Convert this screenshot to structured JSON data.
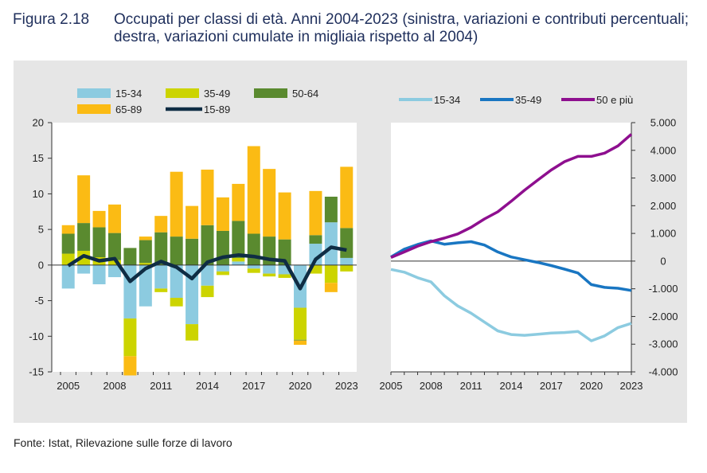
{
  "figure": {
    "number": "Figura 2.18",
    "title": "Occupati per classi di età. Anni 2004-2023 (sinistra, variazioni e contributi percentuali; destra, variazioni cumulate in migliaia rispetto al 2004)",
    "source": "Fonte: Istat, Rilevazione sulle forze di lavoro"
  },
  "chart_data": [
    {
      "type": "bar",
      "subtype": "stacked bar with line",
      "years": [
        2005,
        2006,
        2007,
        2008,
        2009,
        2010,
        2011,
        2012,
        2013,
        2014,
        2015,
        2016,
        2017,
        2018,
        2019,
        2020,
        2021,
        2022,
        2023
      ],
      "x_tick_labels": [
        "2005",
        "2008",
        "2011",
        "2014",
        "2017",
        "2020",
        "2023"
      ],
      "ylim": [
        -15,
        20
      ],
      "y_tick_labels": [
        "20",
        "15",
        "10",
        "5",
        "0",
        "-5",
        "-10",
        "-15"
      ],
      "legend_position": "top",
      "series": [
        {
          "name": "15-34",
          "kind": "bar",
          "color": "#8ccbe0",
          "values": [
            -3.3,
            -1.2,
            -2.7,
            -1.7,
            -7.5,
            -5.8,
            -3.3,
            -4.6,
            -8.3,
            -2.9,
            -0.9,
            0.5,
            -0.5,
            -1.2,
            -1.3,
            -6.0,
            3.0,
            6.0,
            1.0
          ]
        },
        {
          "name": "35-49",
          "kind": "bar",
          "color": "#ccd400",
          "values": [
            1.6,
            2.0,
            1.1,
            0.7,
            -5.3,
            0.3,
            -0.5,
            -1.2,
            -2.3,
            -1.6,
            -0.5,
            0.5,
            -0.6,
            -0.4,
            -0.5,
            -4.5,
            -1.2,
            -2.5,
            -0.9
          ]
        },
        {
          "name": "50-64",
          "kind": "bar",
          "color": "#5a8a2f",
          "values": [
            2.8,
            3.9,
            4.2,
            3.8,
            2.4,
            3.2,
            4.6,
            4.0,
            3.7,
            5.6,
            4.8,
            5.2,
            4.4,
            4.0,
            3.6,
            -0.1,
            1.2,
            3.6,
            4.2
          ]
        },
        {
          "name": "65-89",
          "kind": "bar",
          "color": "#fbbb14",
          "values": [
            1.2,
            6.7,
            2.3,
            4.0,
            -2.7,
            0.5,
            2.3,
            9.1,
            4.6,
            7.8,
            4.7,
            5.2,
            12.3,
            9.5,
            6.6,
            -0.6,
            6.2,
            -1.3,
            8.6
          ]
        },
        {
          "name": "15-89",
          "kind": "line",
          "color": "#0f2d44",
          "values": [
            -0.1,
            1.3,
            0.6,
            0.9,
            -2.3,
            -0.5,
            0.5,
            -0.3,
            -1.9,
            0.4,
            1.1,
            1.4,
            1.2,
            0.8,
            0.6,
            -3.3,
            0.8,
            2.5,
            2.1
          ]
        }
      ]
    },
    {
      "type": "line",
      "years": [
        2005,
        2006,
        2007,
        2008,
        2009,
        2010,
        2011,
        2012,
        2013,
        2014,
        2015,
        2016,
        2017,
        2018,
        2019,
        2020,
        2021,
        2022,
        2023
      ],
      "x_tick_labels": [
        "2005",
        "2008",
        "2011",
        "2014",
        "2017",
        "2020",
        "2023"
      ],
      "ylim": [
        -4000,
        5000
      ],
      "y_tick_labels": [
        "5.000",
        "4.000",
        "3.000",
        "2.000",
        "1.000",
        "0",
        "-1.000",
        "-2.000",
        "-3.000",
        "-4.000"
      ],
      "y_axis_side": "right",
      "legend_position": "top",
      "series": [
        {
          "name": "15-34",
          "color": "#8ccbe0",
          "values": [
            -300,
            -400,
            -600,
            -750,
            -1250,
            -1620,
            -1880,
            -2200,
            -2520,
            -2650,
            -2680,
            -2640,
            -2600,
            -2580,
            -2540,
            -2880,
            -2700,
            -2400,
            -2250
          ]
        },
        {
          "name": "35-49",
          "color": "#1976c2",
          "values": [
            150,
            430,
            600,
            730,
            610,
            660,
            700,
            580,
            330,
            150,
            50,
            -50,
            -160,
            -290,
            -430,
            -850,
            -950,
            -980,
            -1060
          ]
        },
        {
          "name": "50 e più",
          "color": "#8e0f8f",
          "values": [
            130,
            330,
            540,
            700,
            830,
            980,
            1220,
            1520,
            1780,
            2160,
            2560,
            2930,
            3290,
            3590,
            3780,
            3780,
            3900,
            4160,
            4580
          ]
        }
      ]
    }
  ]
}
